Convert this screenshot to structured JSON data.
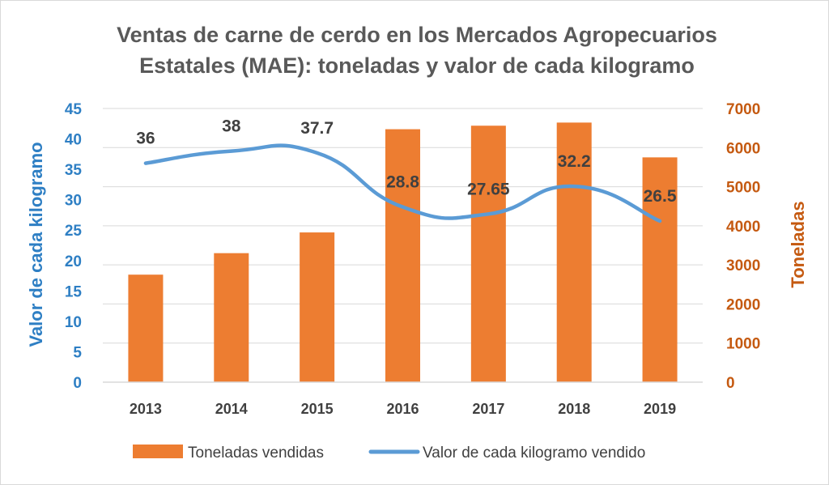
{
  "chart_data": {
    "type": "bar",
    "title_lines": [
      "Ventas de carne de cerdo en los Mercados Agropecuarios",
      "Estatales (MAE): toneladas y valor de cada kilogramo"
    ],
    "categories": [
      "2013",
      "2014",
      "2015",
      "2016",
      "2017",
      "2018",
      "2019"
    ],
    "series": [
      {
        "name": "Toneladas vendidas",
        "type": "bar",
        "axis": "right",
        "values": [
          2750,
          3300,
          3830,
          6470,
          6560,
          6640,
          5750
        ],
        "color": "#ed7d31"
      },
      {
        "name": "Valor de cada kilogramo vendido",
        "type": "line",
        "axis": "left",
        "smooth": true,
        "values": [
          36,
          38,
          37.7,
          28.8,
          27.65,
          32.2,
          26.5
        ],
        "data_labels": [
          "36",
          "38",
          "37.7",
          "28.8",
          "27.65",
          "32.2",
          "26.5"
        ],
        "color": "#5b9bd5"
      }
    ],
    "ylabel": "Valor de cada kilogramo",
    "ylabel_right": "Toneladas",
    "ylim": [
      0,
      45
    ],
    "ylim_right": [
      0,
      7000
    ],
    "yticks": [
      "0",
      "5",
      "10",
      "15",
      "20",
      "25",
      "30",
      "35",
      "40",
      "45"
    ],
    "yticks_right": [
      "0",
      "1000",
      "2000",
      "3000",
      "4000",
      "5000",
      "6000",
      "7000"
    ],
    "grid": true,
    "legend": "bottom",
    "colors": {
      "left_axis": "#2e7fc4",
      "right_axis": "#c55a11",
      "title": "#595959",
      "text": "#404040",
      "grid": "#d9d9d9"
    }
  }
}
